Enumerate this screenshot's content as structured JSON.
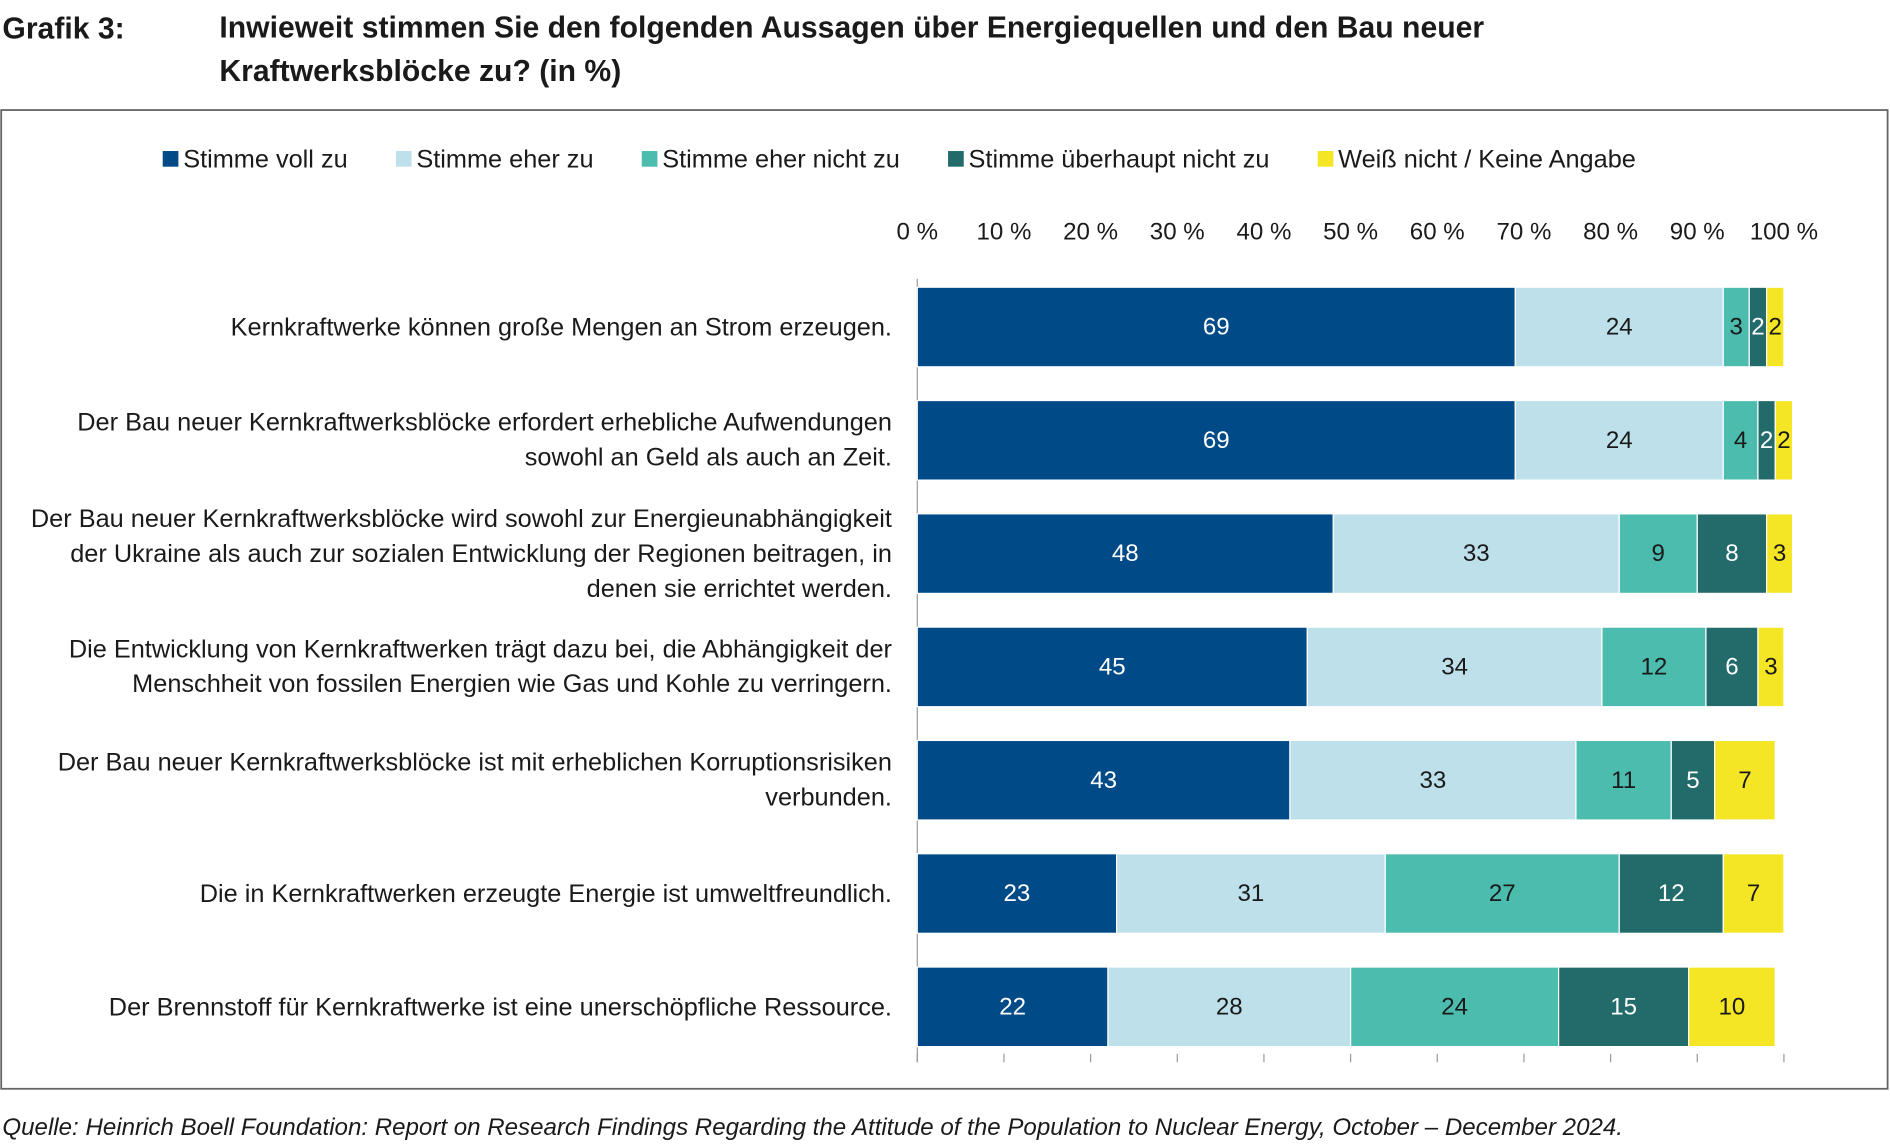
{
  "chart_data": {
    "type": "bar",
    "orientation": "horizontal",
    "stacked": true,
    "label": "Grafik 3:",
    "title": "Inwieweit stimmen Sie den folgenden Aussagen über Energiequellen und den Bau neuer Kraftwerksblöcke zu? (in %)",
    "source": "Quelle: Heinrich Boell Foundation: Report on Research Findings Regarding the Attitude of the Population to Nuclear Energy, October – December 2024.",
    "categories": [
      "Kernkraftwerke können große Mengen an Strom erzeugen.",
      "Der Bau neuer Kernkraftwerksblöcke erfordert erhebliche Aufwendungen sowohl an Geld als auch an Zeit.",
      "Der Bau neuer Kernkraftwerksblöcke wird sowohl zur Energieunabhängigkeit der Ukraine als auch zur sozialen Entwicklung der Regionen beitragen, in denen sie errichtet werden.",
      "Die Entwicklung von Kernkraftwerken trägt dazu bei, die Abhängigkeit der Menschheit von fossilen Energien wie Gas und Kohle zu verringern.",
      "Der Bau neuer Kernkraftwerksblöcke ist mit erheblichen Korruptionsrisiken verbunden.",
      "Die in Kernkraftwerken erzeugte Energie ist umweltfreundlich.",
      "Der Brennstoff für Kernkraftwerke ist eine unerschöpfliche Ressource."
    ],
    "series": [
      {
        "name": "Stimme voll zu",
        "color": "#004a87",
        "label_color": "#ffffff",
        "values": [
          69,
          69,
          48,
          45,
          43,
          23,
          22
        ]
      },
      {
        "name": "Stimme eher zu",
        "color": "#bde0ea",
        "label_color": "#1a1a1a",
        "values": [
          24,
          24,
          33,
          34,
          33,
          31,
          28
        ]
      },
      {
        "name": "Stimme eher nicht zu",
        "color": "#4bbcad",
        "label_color": "#1a1a1a",
        "values": [
          3,
          4,
          9,
          12,
          11,
          27,
          24
        ]
      },
      {
        "name": "Stimme überhaupt nicht zu",
        "color": "#236b6b",
        "label_color": "#ffffff",
        "values": [
          2,
          2,
          8,
          6,
          5,
          12,
          15
        ]
      },
      {
        "name": "Weiß nicht / Keine Angabe",
        "color": "#f5e625",
        "label_color": "#1a1a1a",
        "values": [
          2,
          2,
          3,
          3,
          7,
          7,
          10
        ]
      }
    ],
    "xlim": [
      0,
      100
    ],
    "xticks": [
      {
        "value": 0,
        "label": "0 %"
      },
      {
        "value": 10,
        "label": "10 %"
      },
      {
        "value": 20,
        "label": "20 %"
      },
      {
        "value": 30,
        "label": "30 %"
      },
      {
        "value": 40,
        "label": "40 %"
      },
      {
        "value": 50,
        "label": "50 %"
      },
      {
        "value": 60,
        "label": "60 %"
      },
      {
        "value": 70,
        "label": "70 %"
      },
      {
        "value": 80,
        "label": "80 %"
      },
      {
        "value": 90,
        "label": "90 %"
      },
      {
        "value": 100,
        "label": "100 %"
      }
    ],
    "legend": "top"
  }
}
